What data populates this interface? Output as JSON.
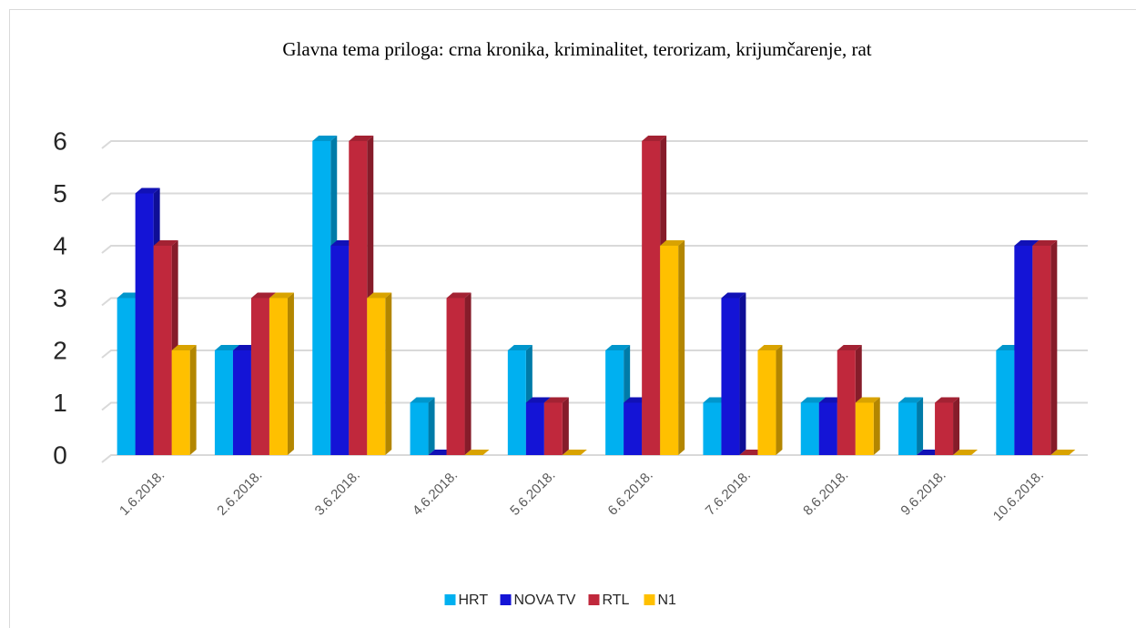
{
  "chart_data": {
    "type": "bar3d",
    "title": "Glavna tema priloga: crna kronika, kriminalitet, terorizam, krijumčarenje, rat",
    "categories": [
      "1.6.2018.",
      "2.6.2018.",
      "3.6.2018.",
      "4.6.2018.",
      "5.6.2018.",
      "6.6.2018.",
      "7.6.2018.",
      "8.6.2018.",
      "9.6.2018.",
      "10.6.2018."
    ],
    "series": [
      {
        "name": "HRT",
        "color": "#00b0f0",
        "values": [
          3,
          2,
          6,
          1,
          2,
          2,
          1,
          1,
          1,
          2
        ]
      },
      {
        "name": "NOVA TV",
        "color": "#1414d6",
        "values": [
          5,
          2,
          4,
          0,
          1,
          1,
          3,
          1,
          0,
          4
        ]
      },
      {
        "name": "RTL",
        "color": "#c0283c",
        "values": [
          4,
          3,
          6,
          3,
          1,
          6,
          0,
          2,
          1,
          4
        ]
      },
      {
        "name": "N1",
        "color": "#ffc000",
        "values": [
          2,
          3,
          3,
          0,
          0,
          4,
          2,
          1,
          0,
          0
        ]
      }
    ],
    "ylim": [
      0,
      6
    ],
    "yticks": [
      0,
      1,
      2,
      3,
      4,
      5,
      6
    ],
    "grid": true,
    "legend": "bottom"
  }
}
